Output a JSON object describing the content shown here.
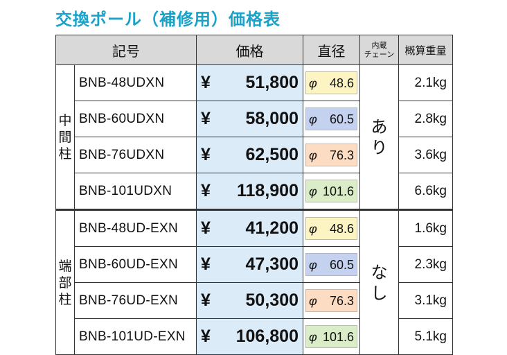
{
  "title": "交換ポール（補修用）価格表",
  "headers": {
    "model": "記号",
    "price": "価格",
    "diameter": "直径",
    "chain_line1": "内蔵",
    "chain_line2": "チェーン",
    "weight": "概算重量"
  },
  "groups": [
    {
      "label": "中間柱",
      "chain": "あり",
      "rows": [
        {
          "model": "BNB-48UDXN",
          "yen": "¥",
          "price": "51,800",
          "phi": "φ",
          "diameter": "48.6",
          "weight": "2.1kg",
          "color": "#fdf4c4"
        },
        {
          "model": "BNB-60UDXN",
          "yen": "¥",
          "price": "58,000",
          "phi": "φ",
          "diameter": "60.5",
          "weight": "2.8kg",
          "color": "#c5d2ef"
        },
        {
          "model": "BNB-76UDXN",
          "yen": "¥",
          "price": "62,500",
          "phi": "φ",
          "diameter": "76.3",
          "weight": "3.6kg",
          "color": "#fcdcc2"
        },
        {
          "model": "BNB-101UDXN",
          "yen": "¥",
          "price": "118,900",
          "phi": "φ",
          "diameter": "101.6",
          "weight": "6.6kg",
          "color": "#dbedc8"
        }
      ]
    },
    {
      "label": "端部柱",
      "chain": "なし",
      "rows": [
        {
          "model": "BNB-48UD-EXN",
          "yen": "¥",
          "price": "41,200",
          "phi": "φ",
          "diameter": "48.6",
          "weight": "1.6kg",
          "color": "#fdf4c4"
        },
        {
          "model": "BNB-60UD-EXN",
          "yen": "¥",
          "price": "47,300",
          "phi": "φ",
          "diameter": "60.5",
          "weight": "2.3kg",
          "color": "#c5d2ef"
        },
        {
          "model": "BNB-76UD-EXN",
          "yen": "¥",
          "price": "50,300",
          "phi": "φ",
          "diameter": "76.3",
          "weight": "3.1kg",
          "color": "#fcdcc2"
        },
        {
          "model": "BNB-101UD-EXN",
          "yen": "¥",
          "price": "106,800",
          "phi": "φ",
          "diameter": "101.6",
          "weight": "5.1kg",
          "color": "#dbedc8"
        }
      ]
    }
  ],
  "colors": {
    "title": "#1aa2c9",
    "header_bg": "#d9d9d9",
    "price_bg": "#dcebf8"
  }
}
